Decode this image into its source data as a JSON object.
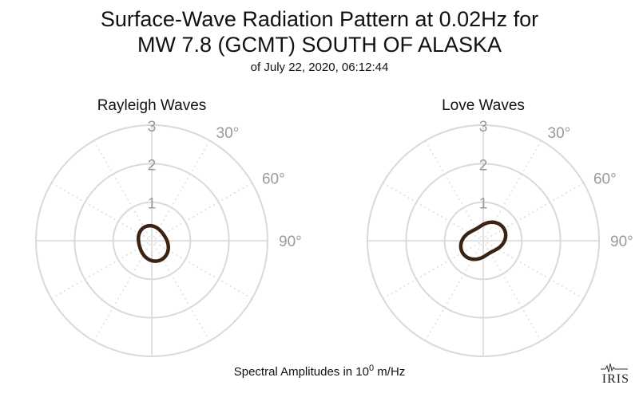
{
  "title": {
    "line1": "Surface-Wave Radiation Pattern at 0.02Hz for",
    "line2": "MW 7.8 (GCMT) SOUTH OF ALASKA",
    "line3": "of July 22, 2020, 06:12:44"
  },
  "footer": {
    "prefix": "Spectral Amplitudes in 10",
    "exponent": "0",
    "suffix": " m/Hz"
  },
  "logo": {
    "text": "IRIS"
  },
  "colors": {
    "pattern": "#3b2314",
    "grid": "#d9d9d9",
    "tick_label": "#9a9a9a"
  },
  "chart_data": [
    {
      "type": "polar-line",
      "title": "Rayleigh Waves",
      "radial_ticks": [
        "1",
        "2",
        "3"
      ],
      "radial_max": 3,
      "angle_ticks": [
        "30°",
        "60°",
        "90°"
      ],
      "angle_units": "degrees clockwise from north",
      "series": [
        {
          "lobes": [
            {
              "azimuth": 155,
              "amplitude": 0.55
            },
            {
              "azimuth": 335,
              "amplitude": 0.4
            }
          ],
          "baseline": 0.28
        }
      ]
    },
    {
      "type": "polar-line",
      "title": "Love Waves",
      "radial_ticks": [
        "1",
        "2",
        "3"
      ],
      "radial_max": 3,
      "angle_ticks": [
        "30°",
        "60°",
        "90°"
      ],
      "angle_units": "degrees clockwise from north",
      "series": [
        {
          "lobes": [
            {
              "azimuth": 60,
              "amplitude": 0.62
            },
            {
              "azimuth": 240,
              "amplitude": 0.62
            }
          ],
          "baseline": 0.22
        }
      ]
    }
  ]
}
